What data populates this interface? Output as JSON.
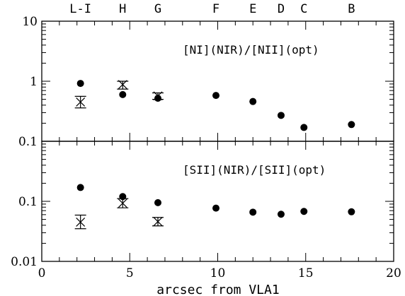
{
  "chart_data": [
    {
      "type": "scatter",
      "title": "[NI](NIR)/[NII](opt)",
      "xlim": [
        0,
        20
      ],
      "ylim": [
        0.1,
        10
      ],
      "yscale": "log",
      "yticks": [
        "10",
        "1",
        "0.1"
      ],
      "series": [
        {
          "marker": "filled-circle",
          "points": [
            {
              "x": 2.2,
              "y": 0.92
            },
            {
              "x": 4.6,
              "y": 0.6
            },
            {
              "x": 6.6,
              "y": 0.52
            },
            {
              "x": 9.9,
              "y": 0.58
            },
            {
              "x": 12.0,
              "y": 0.46
            },
            {
              "x": 13.6,
              "y": 0.27
            },
            {
              "x": 14.9,
              "y": 0.17
            },
            {
              "x": 17.6,
              "y": 0.19
            }
          ]
        },
        {
          "marker": "x-errorbar",
          "points": [
            {
              "x": 2.2,
              "y": 0.45,
              "ylow": 0.36,
              "yhigh": 0.56
            },
            {
              "x": 4.6,
              "y": 0.88,
              "ylow": 0.74,
              "yhigh": 1.0
            },
            {
              "x": 6.6,
              "y": 0.57,
              "ylow": 0.5,
              "yhigh": 0.64
            }
          ]
        }
      ]
    },
    {
      "type": "scatter",
      "title": "[SII](NIR)/[SII](opt)",
      "xlim": [
        0,
        20
      ],
      "ylim": [
        0.01,
        1
      ],
      "yscale": "log",
      "yticks": [
        "0.1",
        "0.01"
      ],
      "xticks": [
        "0",
        "5",
        "10",
        "15",
        "20"
      ],
      "xlabel": "arcsec from VLA1",
      "series": [
        {
          "marker": "filled-circle",
          "points": [
            {
              "x": 2.2,
              "y": 0.17
            },
            {
              "x": 4.6,
              "y": 0.12
            },
            {
              "x": 6.6,
              "y": 0.095
            },
            {
              "x": 9.9,
              "y": 0.077
            },
            {
              "x": 12.0,
              "y": 0.066
            },
            {
              "x": 13.6,
              "y": 0.061
            },
            {
              "x": 14.9,
              "y": 0.068
            },
            {
              "x": 17.6,
              "y": 0.067
            }
          ]
        },
        {
          "marker": "x-errorbar",
          "points": [
            {
              "x": 2.2,
              "y": 0.045,
              "ylow": 0.035,
              "yhigh": 0.059
            },
            {
              "x": 4.6,
              "y": 0.093,
              "ylow": 0.078,
              "yhigh": 0.111
            },
            {
              "x": 6.6,
              "y": 0.046,
              "ylow": 0.039,
              "yhigh": 0.054
            }
          ]
        }
      ]
    }
  ],
  "region_labels": [
    {
      "label": "L-I",
      "x": 2.2
    },
    {
      "label": "H",
      "x": 4.6
    },
    {
      "label": "G",
      "x": 6.6
    },
    {
      "label": "F",
      "x": 9.9
    },
    {
      "label": "E",
      "x": 12.0
    },
    {
      "label": "D",
      "x": 13.6
    },
    {
      "label": "C",
      "x": 14.9
    },
    {
      "label": "B",
      "x": 17.6
    }
  ]
}
